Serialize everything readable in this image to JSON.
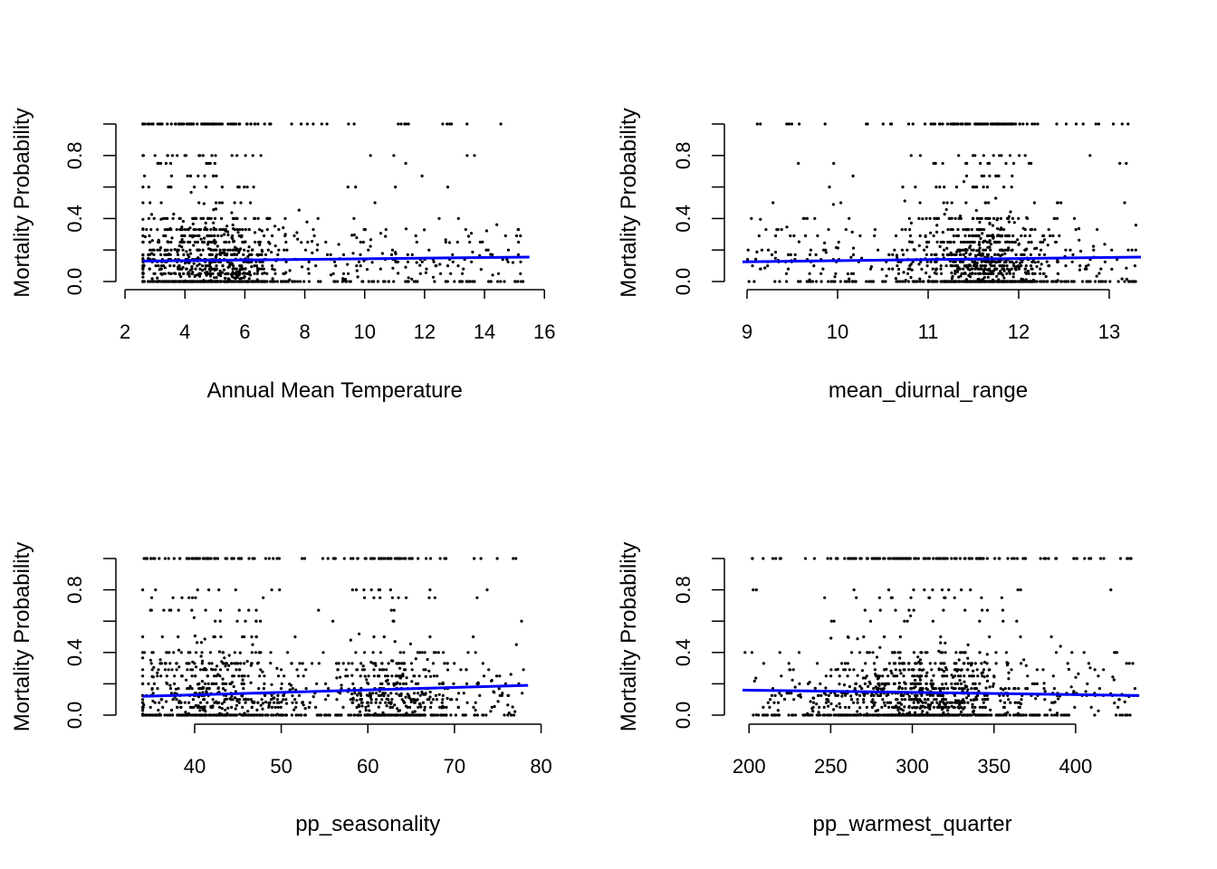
{
  "chart_data": [
    {
      "type": "scatter",
      "xlabel": "Annual Mean Temperature",
      "ylabel": "Mortality Probability",
      "xlim": [
        2.3,
        15.6
      ],
      "ylim": [
        0,
        1
      ],
      "xticks": [
        2,
        4,
        6,
        8,
        10,
        12,
        14,
        16
      ],
      "yticks": [
        0.0,
        0.4,
        0.8
      ],
      "ytick_labels": [
        "0.0",
        "0.4",
        "0.8"
      ],
      "fit_line": {
        "x": [
          2.6,
          15.5
        ],
        "y": [
          0.13,
          0.155
        ],
        "color": "#0000ff"
      },
      "point_color": "#000000",
      "point_cloud": {
        "n": 1300,
        "x_center": 4.8,
        "x_spread": 1.2,
        "x_uniform_range": [
          2.6,
          15.3
        ],
        "levels": [
          0,
          0.05,
          0.08,
          0.1,
          0.125,
          0.14,
          0.17,
          0.2,
          0.25,
          0.29,
          0.33,
          0.4,
          0.5,
          0.6,
          0.67,
          0.75,
          0.8,
          1.0
        ],
        "seed": 11
      }
    },
    {
      "type": "scatter",
      "xlabel": "mean_diurnal_range",
      "ylabel": "Mortality Probability",
      "xlim": [
        8.95,
        13.35
      ],
      "ylim": [
        0,
        1
      ],
      "xticks": [
        9,
        10,
        11,
        12,
        13
      ],
      "yticks": [
        0.0,
        0.4,
        0.8
      ],
      "ytick_labels": [
        "0.0",
        "0.4",
        "0.8"
      ],
      "fit_line": {
        "x": [
          8.95,
          13.35
        ],
        "y": [
          0.125,
          0.155
        ],
        "color": "#0000ff"
      },
      "point_color": "#000000",
      "point_cloud": {
        "n": 1300,
        "x_center": 11.6,
        "x_spread": 0.35,
        "x_uniform_range": [
          9.0,
          13.3
        ],
        "levels": [
          0,
          0.05,
          0.08,
          0.1,
          0.125,
          0.14,
          0.17,
          0.2,
          0.25,
          0.29,
          0.33,
          0.4,
          0.5,
          0.6,
          0.67,
          0.75,
          0.8,
          1.0
        ],
        "seed": 23
      }
    },
    {
      "type": "scatter",
      "xlabel": "pp_seasonality",
      "ylabel": "Mortality Probability",
      "xlim": [
        33,
        79
      ],
      "ylim": [
        0,
        1
      ],
      "xticks": [
        40,
        50,
        60,
        70,
        80
      ],
      "yticks": [
        0.0,
        0.4,
        0.8
      ],
      "ytick_labels": [
        "0.0",
        "0.4",
        "0.8"
      ],
      "fit_line": {
        "x": [
          34,
          78.5
        ],
        "y": [
          0.12,
          0.19
        ],
        "color": "#0000ff"
      },
      "point_color": "#000000",
      "point_cloud": {
        "n": 1300,
        "x_center": 42,
        "x_spread": 4.5,
        "x_uniform_range": [
          34,
          78
        ],
        "secondary_center": 63,
        "secondary_spread": 3.5,
        "secondary_share": 0.3,
        "levels": [
          0,
          0.05,
          0.08,
          0.1,
          0.125,
          0.14,
          0.17,
          0.2,
          0.25,
          0.29,
          0.33,
          0.4,
          0.5,
          0.6,
          0.67,
          0.75,
          0.8,
          1.0
        ],
        "seed": 37
      }
    },
    {
      "type": "scatter",
      "xlabel": "pp_warmest_quarter",
      "ylabel": "Mortality Probability",
      "xlim": [
        196,
        440
      ],
      "ylim": [
        0,
        1
      ],
      "xticks": [
        200,
        250,
        300,
        350,
        400
      ],
      "yticks": [
        0.0,
        0.4,
        0.8
      ],
      "ytick_labels": [
        "0.0",
        "0.4",
        "0.8"
      ],
      "fit_line": {
        "x": [
          196,
          439
        ],
        "y": [
          0.16,
          0.125
        ],
        "color": "#0000ff"
      },
      "point_color": "#000000",
      "point_cloud": {
        "n": 1300,
        "x_center": 305,
        "x_spread": 30,
        "x_uniform_range": [
          197,
          438
        ],
        "levels": [
          0,
          0.05,
          0.08,
          0.1,
          0.125,
          0.14,
          0.17,
          0.2,
          0.25,
          0.29,
          0.33,
          0.4,
          0.5,
          0.6,
          0.67,
          0.75,
          0.8,
          1.0
        ],
        "seed": 53
      }
    }
  ]
}
